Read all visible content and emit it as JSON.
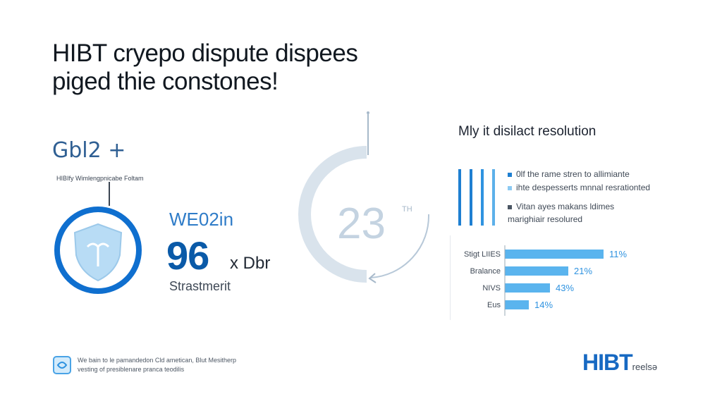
{
  "header": {
    "title_line1": "HIBT cryepo dispute dispees",
    "title_line2": "piged thie constones!"
  },
  "logo": {
    "mark": "Gbl2 +",
    "subtitle": "HIBIfy Wimlengpnicabe Foltam"
  },
  "stat": {
    "label": "WE02in",
    "value": "96",
    "unit": "x Dbr",
    "footnote": "Strastmerit"
  },
  "gauge": {
    "value": "23",
    "suffix": "TH"
  },
  "panel": {
    "title": "Mly it disilact resolution",
    "bar_colors": [
      "#1e7fd1",
      "#1e7fd1",
      "#2f93e0",
      "#5cb0ea"
    ],
    "legend": [
      {
        "text": "0lf the rame stren to allimiante",
        "color": "#1e7fd1"
      },
      {
        "text": "ihte despesserts mnnal resrationted",
        "color": "#8ccaf3"
      },
      {
        "text": "Vitan ayes makans ldimes",
        "color": "#4a5563"
      },
      {
        "text": "marighiair resolured",
        "color": null
      }
    ]
  },
  "chart_data": {
    "type": "bar",
    "orientation": "horizontal",
    "categories": [
      "Stigt LIIES",
      "Bralance",
      "NIVS",
      "Eus"
    ],
    "values": [
      11,
      21,
      43,
      14
    ],
    "value_labels": [
      "11%",
      "21%",
      "43%",
      "14%"
    ],
    "bar_color": "#5ab4ee",
    "label_color": "#2f93e0"
  },
  "footer": {
    "line1": "We bain to le pamandedon Cld ametican, Blut Mesitherp",
    "line2": "vesting of presiblenare pranca teodilis"
  },
  "brand": {
    "main": "HIBT",
    "tail": "reelsə"
  }
}
